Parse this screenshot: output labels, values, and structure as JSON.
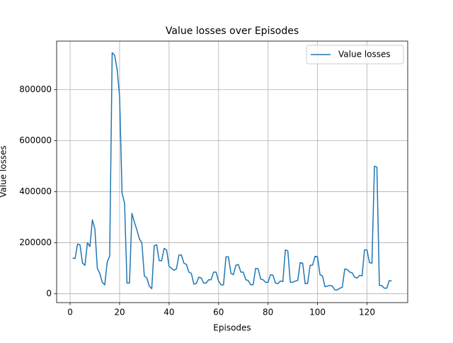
{
  "chart_data": {
    "type": "line",
    "title": "Value losses over Episodes",
    "x_label": "Episodes",
    "y_label": "Value losses",
    "x": [
      1,
      2,
      3,
      4,
      5,
      6,
      7,
      8,
      9,
      10,
      11,
      12,
      13,
      14,
      15,
      16,
      17,
      18,
      19,
      20,
      21,
      22,
      23,
      24,
      25,
      26,
      27,
      28,
      29,
      30,
      31,
      32,
      33,
      34,
      35,
      36,
      37,
      38,
      39,
      40,
      41,
      42,
      43,
      44,
      45,
      46,
      47,
      48,
      49,
      50,
      51,
      52,
      53,
      54,
      55,
      56,
      57,
      58,
      59,
      60,
      61,
      62,
      63,
      64,
      65,
      66,
      67,
      68,
      69,
      70,
      71,
      72,
      73,
      74,
      75,
      76,
      77,
      78,
      79,
      80,
      81,
      82,
      83,
      84,
      85,
      86,
      87,
      88,
      89,
      90,
      91,
      92,
      93,
      94,
      95,
      96,
      97,
      98,
      99,
      100,
      101,
      102,
      103,
      104,
      105,
      106,
      107,
      108,
      109,
      110,
      111,
      112,
      113,
      114,
      115,
      116,
      117,
      118,
      119,
      120,
      121,
      122,
      123,
      124,
      125,
      126,
      127,
      128,
      129,
      130
    ],
    "series": [
      {
        "name": "Value losses",
        "color": "#1f77b4",
        "values": [
          140000,
          138000,
          195000,
          192000,
          120000,
          112000,
          200000,
          185000,
          290000,
          255000,
          100000,
          80000,
          45000,
          35000,
          125000,
          148000,
          945000,
          935000,
          880000,
          775000,
          395000,
          355000,
          42000,
          42000,
          315000,
          280000,
          250000,
          215000,
          200000,
          70000,
          62000,
          30000,
          20000,
          188000,
          192000,
          130000,
          130000,
          178000,
          172000,
          108000,
          100000,
          92000,
          98000,
          152000,
          152000,
          120000,
          115000,
          85000,
          80000,
          38000,
          40000,
          65000,
          62000,
          42000,
          42000,
          55000,
          55000,
          85000,
          85000,
          50000,
          35000,
          35000,
          145000,
          145000,
          80000,
          75000,
          112000,
          115000,
          85000,
          85000,
          55000,
          52000,
          35000,
          36000,
          100000,
          98000,
          58000,
          55000,
          45000,
          45000,
          75000,
          73000,
          42000,
          40000,
          50000,
          48000,
          172000,
          168000,
          45000,
          45000,
          50000,
          52000,
          122000,
          120000,
          40000,
          40000,
          112000,
          112000,
          147000,
          145000,
          75000,
          70000,
          28000,
          30000,
          33000,
          30000,
          15000,
          15000,
          22000,
          25000,
          97000,
          95000,
          85000,
          82000,
          65000,
          62000,
          72000,
          70000,
          172000,
          172000,
          122000,
          120000,
          500000,
          497000,
          33000,
          32000,
          22000,
          22000,
          52000,
          50000
        ]
      }
    ],
    "xlim": [
      -5.45,
      136.45
    ],
    "ylim": [
      -34600,
      990600
    ],
    "xticks": [
      0,
      20,
      40,
      60,
      80,
      100,
      120
    ],
    "yticks": [
      0,
      200000,
      400000,
      600000,
      800000
    ],
    "grid": true,
    "legend": "upper right"
  }
}
